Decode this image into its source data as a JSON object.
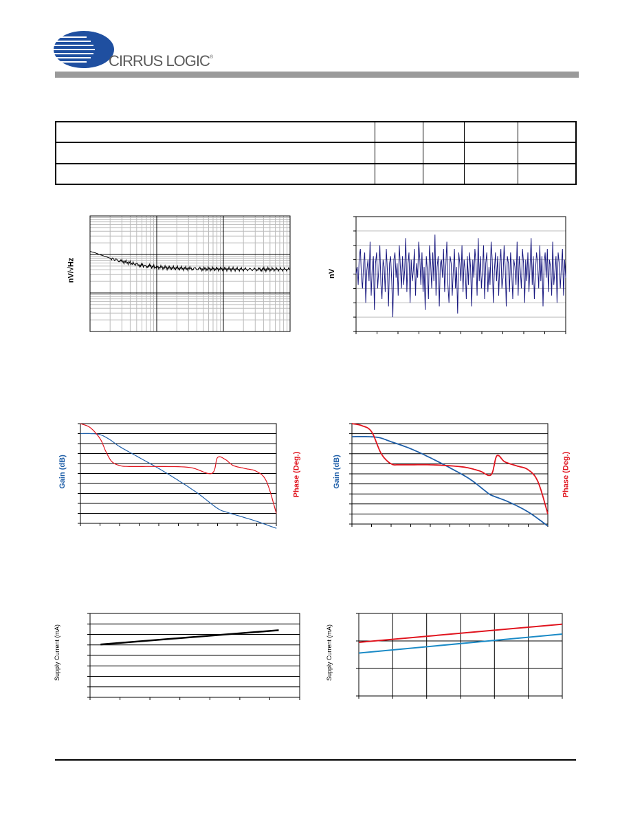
{
  "header": {
    "brand": "CIRRUS LOGIC",
    "trademark": "®"
  },
  "spec_table": {
    "rows": [
      [
        "",
        "",
        "",
        "",
        ""
      ],
      [
        "",
        "",
        "",
        "",
        ""
      ],
      [
        "",
        "",
        "",
        "",
        ""
      ],
      [
        "",
        "",
        "",
        "",
        ""
      ]
    ]
  },
  "colors": {
    "header_rule": "#9a9a9a",
    "noise_trace": "#000000",
    "time_noise_trace": "#1a1a80",
    "gain_trace": "#1f5fa8",
    "phase_trace": "#e0141e",
    "gain_label": "#1f5fa8",
    "phase_label": "#e0141e",
    "supply_blue": "#1a8ac6",
    "supply_red": "#e0141e"
  },
  "chart_data": [
    {
      "id": "noise-density",
      "type": "line",
      "ylabel": "nV/√Hz",
      "xscale": "log",
      "xlim": [
        1,
        1000
      ],
      "ylim": [
        1,
        1000
      ],
      "yscale": "log",
      "grid": true,
      "series": [
        {
          "color": "#000000",
          "x": [
            1,
            1.2,
            1.5,
            2,
            2.5,
            3,
            4,
            5,
            6,
            7,
            8,
            10,
            15,
            20,
            30,
            50,
            100,
            200,
            500,
            1000
          ],
          "values": [
            120,
            110,
            95,
            80,
            72,
            66,
            60,
            55,
            52,
            50,
            49,
            47,
            45,
            44,
            43,
            42,
            42,
            41,
            41,
            41
          ]
        }
      ]
    },
    {
      "id": "time-noise",
      "type": "line",
      "ylabel": "nV",
      "xlim": [
        0,
        10
      ],
      "ylim": [
        -80,
        80
      ],
      "grid": true,
      "series": [
        {
          "color": "#1a1a80",
          "values": [
            0,
            10,
            -15,
            25,
            35,
            -5,
            -20,
            15,
            30,
            -40,
            5,
            20,
            -10,
            45,
            -30,
            10,
            25,
            -50,
            15,
            30,
            -20,
            5,
            40,
            -15,
            -35,
            20,
            10,
            -25,
            35,
            5,
            -45,
            15,
            25,
            -10,
            -60,
            20,
            30,
            -5,
            15,
            -30,
            40,
            10,
            -20,
            25,
            -15,
            5,
            50,
            -25,
            15,
            30,
            -40,
            20,
            -10,
            5,
            35,
            -30,
            15,
            -5,
            45,
            20,
            -15,
            30,
            -25,
            10,
            -50,
            25,
            5,
            -35,
            40,
            15,
            -20,
            30,
            -10,
            55,
            -30,
            10,
            25,
            -45,
            15,
            20,
            -5,
            35,
            -25,
            10,
            45,
            -15,
            -40,
            25,
            15,
            -30,
            5,
            35,
            -20,
            10,
            -55,
            30,
            15,
            -10,
            40,
            -25,
            20,
            5,
            -35,
            25,
            -15,
            30,
            10,
            -45,
            20,
            -5,
            35,
            15,
            -30,
            50,
            -10,
            25,
            -20,
            5,
            40,
            -35,
            15,
            30,
            -25,
            10,
            -15,
            45,
            20,
            -40,
            5,
            30,
            -10,
            25,
            -30,
            15,
            35,
            -20,
            -5,
            40,
            10,
            -45,
            25,
            15,
            -25,
            30,
            5,
            -35,
            20,
            10,
            -15,
            45,
            -30,
            25,
            5,
            -20,
            35,
            15,
            -40,
            20,
            -10,
            30,
            -25,
            10,
            50,
            -15,
            25,
            -35,
            5,
            30,
            15,
            -20,
            40,
            -10,
            25,
            -45,
            15,
            30,
            -5,
            35,
            -25,
            20,
            10,
            -30,
            45,
            -15,
            5,
            25,
            -40,
            30,
            15,
            -20,
            10,
            35,
            -30,
            20,
            -5
          ]
        }
      ]
    },
    {
      "id": "gain-phase-1",
      "type": "line",
      "xlabel": "",
      "ylabel": "Gain (dB)",
      "y2label": "Phase (Deg.)",
      "xscale": "log",
      "grid": true,
      "series": [
        {
          "color": "#1f5fa8",
          "x": [
            0,
            0.05,
            0.1,
            0.15,
            0.2,
            0.3,
            0.4,
            0.5,
            0.6,
            0.7,
            0.75,
            0.8,
            0.9,
            1.0
          ],
          "values": [
            90,
            90,
            89,
            84,
            77,
            66,
            55,
            43,
            30,
            15,
            11,
            8,
            2,
            -5
          ]
        },
        {
          "color": "#e0141e",
          "x": [
            0,
            0.05,
            0.1,
            0.13,
            0.16,
            0.2,
            0.25,
            0.4,
            0.56,
            0.67,
            0.7,
            0.74,
            0.78,
            0.84,
            0.9,
            0.95,
            1.0
          ],
          "values": [
            100,
            96,
            85,
            72,
            62,
            58,
            57,
            57,
            56,
            50,
            66,
            64,
            58,
            55,
            52,
            42,
            10
          ]
        }
      ]
    },
    {
      "id": "gain-phase-2",
      "type": "line",
      "xlabel": "",
      "ylabel": "Gain (dB)",
      "y2label": "Phase (Deg.)",
      "xscale": "log",
      "grid": true,
      "series": [
        {
          "color": "#1f5fa8",
          "x": [
            0,
            0.08,
            0.14,
            0.2,
            0.3,
            0.4,
            0.5,
            0.6,
            0.68,
            0.7,
            0.72,
            0.8,
            0.9,
            1.0
          ],
          "values": [
            87,
            87,
            86,
            82,
            75,
            66,
            56,
            45,
            33,
            30,
            28,
            22,
            12,
            -2
          ]
        },
        {
          "color": "#e0141e",
          "x": [
            0,
            0.05,
            0.1,
            0.15,
            0.2,
            0.25,
            0.4,
            0.56,
            0.65,
            0.71,
            0.74,
            0.78,
            0.84,
            0.9,
            0.95,
            1.0
          ],
          "values": [
            100,
            98,
            92,
            70,
            60,
            59,
            59,
            57,
            53,
            49,
            68,
            62,
            58,
            54,
            42,
            10
          ]
        }
      ]
    },
    {
      "id": "supply-1",
      "type": "line",
      "ylabel": "Supply Current (mA)",
      "grid": true,
      "series": [
        {
          "color": "#000000",
          "x": [
            0.05,
            0.9
          ],
          "values": [
            63,
            80
          ]
        }
      ]
    },
    {
      "id": "supply-2",
      "type": "line",
      "ylabel": "Supply Current (mA)",
      "grid": true,
      "series": [
        {
          "color": "#e0141e",
          "x": [
            0,
            1
          ],
          "values": [
            65,
            87
          ]
        },
        {
          "color": "#1a8ac6",
          "x": [
            0,
            1
          ],
          "values": [
            52,
            75
          ]
        }
      ]
    }
  ]
}
